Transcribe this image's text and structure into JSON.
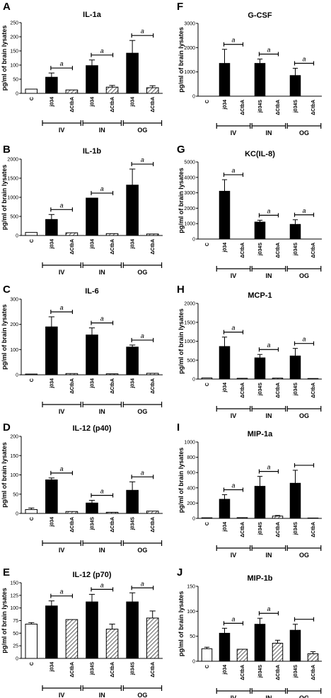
{
  "figure": {
    "ylabel": "pg/ml of brain lysates"
  },
  "chart_data": [
    {
      "letter": "A",
      "title": "IL-1a",
      "type": "bar",
      "ylabel": "pg/ml of brain lysates",
      "ylim": [
        0,
        250
      ],
      "yticks": [
        0,
        50,
        100,
        150,
        200,
        250
      ],
      "categories": [
        "C",
        "j034",
        "ΔCtbA",
        "j034",
        "ΔCtbA",
        "j034",
        "ΔCtbA"
      ],
      "values": [
        15,
        57,
        12,
        98,
        22,
        142,
        20
      ],
      "errors": [
        0,
        15,
        0,
        20,
        6,
        45,
        7
      ],
      "groups": [
        "IV",
        "IN",
        "OG"
      ],
      "significance": [
        "a",
        "a",
        "a"
      ]
    },
    {
      "letter": "B",
      "title": "IL-1b",
      "type": "bar",
      "ylabel": "pg/ml of brain lysates",
      "ylim": [
        0,
        2000
      ],
      "yticks": [
        0,
        500,
        1000,
        1500,
        2000
      ],
      "categories": [
        "C",
        "j034",
        "ΔCtbA",
        "j034",
        "ΔCtbA",
        "j034",
        "ΔCtbA"
      ],
      "values": [
        80,
        420,
        70,
        980,
        50,
        1320,
        40
      ],
      "errors": [
        0,
        130,
        0,
        0,
        0,
        420,
        0
      ],
      "groups": [
        "IV",
        "IN",
        "OG"
      ],
      "significance": [
        "a",
        "a",
        "a"
      ]
    },
    {
      "letter": "C",
      "title": "IL-6",
      "type": "bar",
      "ylabel": "pg/ml of brain lysates",
      "ylim": [
        0,
        300
      ],
      "yticks": [
        0,
        100,
        200,
        300
      ],
      "categories": [
        "C",
        "j034",
        "ΔCtbA",
        "j034",
        "ΔCtbA",
        "j034",
        "ΔCtbA"
      ],
      "values": [
        3,
        190,
        5,
        158,
        4,
        110,
        6
      ],
      "errors": [
        0,
        40,
        0,
        28,
        0,
        8,
        0
      ],
      "groups": [
        "IV",
        "IN",
        "OG"
      ],
      "significance": [
        "a",
        "a",
        "a"
      ]
    },
    {
      "letter": "D",
      "title": "IL-12 (p40)",
      "type": "bar",
      "ylabel": "pg/ml of brain lysates",
      "ylim": [
        0,
        200
      ],
      "yticks": [
        0,
        50,
        100,
        150,
        200
      ],
      "categories": [
        "C",
        "j034",
        "ΔCtbA",
        "j034S",
        "ΔCtbA",
        "j034S",
        "ΔCtbA"
      ],
      "values": [
        10,
        87,
        5,
        27,
        3,
        60,
        6
      ],
      "errors": [
        4,
        5,
        0,
        7,
        0,
        22,
        0
      ],
      "groups": [
        "IV",
        "IN",
        "OG"
      ],
      "significance": [
        "a",
        "a",
        "a"
      ]
    },
    {
      "letter": "E",
      "title": "IL-12 (p70)",
      "type": "bar",
      "ylabel": "pg/ml of brain lysates",
      "ylim": [
        0,
        150
      ],
      "yticks": [
        0,
        25,
        50,
        75,
        100,
        125,
        150
      ],
      "categories": [
        "C",
        "j034",
        "ΔCtbA",
        "j034S",
        "ΔCtbA",
        "j034S",
        "ΔCtbA"
      ],
      "values": [
        68,
        104,
        77,
        112,
        58,
        112,
        80
      ],
      "errors": [
        3,
        10,
        0,
        15,
        10,
        18,
        14
      ],
      "groups": [
        "IV",
        "IN",
        "OG"
      ],
      "significance": [
        "a",
        "a",
        "a"
      ]
    },
    {
      "letter": "F",
      "title": "G-CSF",
      "type": "bar",
      "ylabel": "pg/ml of brain lysates",
      "ylim": [
        0,
        3000
      ],
      "yticks": [
        0,
        1000,
        2000,
        3000
      ],
      "categories": [
        "C",
        "j034",
        "ΔCtbA",
        "j034S",
        "ΔCtbA",
        "j034S",
        "ΔCtbA"
      ],
      "values": [
        0,
        1350,
        0,
        1350,
        0,
        850,
        0
      ],
      "errors": [
        0,
        580,
        0,
        180,
        0,
        300,
        0
      ],
      "groups": [
        "IV",
        "IN",
        "OG"
      ],
      "significance": [
        "a",
        "a",
        "a"
      ]
    },
    {
      "letter": "G",
      "title": "KC(IL-8)",
      "type": "bar",
      "ylabel": "pg/ml of brain lysates",
      "ylim": [
        0,
        5000
      ],
      "yticks": [
        0,
        1000,
        2000,
        3000,
        4000,
        5000
      ],
      "categories": [
        "C",
        "j034",
        "ΔCtbA",
        "j034S",
        "ΔCtbA",
        "j034S",
        "ΔCtbA"
      ],
      "values": [
        0,
        3100,
        0,
        1100,
        0,
        950,
        0
      ],
      "errors": [
        0,
        750,
        0,
        120,
        0,
        300,
        0
      ],
      "groups": [
        "IV",
        "IN",
        "OG"
      ],
      "significance": [
        "a",
        "a",
        "a"
      ]
    },
    {
      "letter": "H",
      "title": "MCP-1",
      "type": "bar",
      "ylabel": "pg/ml of brain lysates",
      "ylim": [
        0,
        2000
      ],
      "yticks": [
        0,
        500,
        1000,
        1500,
        2000
      ],
      "categories": [
        "C",
        "j034",
        "ΔCtbA",
        "j034S",
        "ΔCtbA",
        "j034S",
        "ΔCtbA"
      ],
      "values": [
        30,
        860,
        20,
        560,
        25,
        610,
        15
      ],
      "errors": [
        0,
        250,
        0,
        90,
        0,
        200,
        0
      ],
      "groups": [
        "IV",
        "IN",
        "OG"
      ],
      "significance": [
        "a",
        "a",
        "a"
      ]
    },
    {
      "letter": "I",
      "title": "MIP-1a",
      "type": "bar",
      "ylabel": "pg/ml of brain lysates",
      "ylim": [
        0,
        1000
      ],
      "yticks": [
        0,
        200,
        400,
        600,
        800,
        1000
      ],
      "categories": [
        "C",
        "j034",
        "ΔCtbA",
        "j034S",
        "ΔCtbA",
        "j034S",
        "ΔCtbA"
      ],
      "values": [
        8,
        250,
        10,
        420,
        30,
        460,
        5
      ],
      "errors": [
        0,
        60,
        0,
        130,
        8,
        170,
        0
      ],
      "groups": [
        "IV",
        "IN",
        "OG"
      ],
      "significance": [
        "a",
        "a",
        ""
      ]
    },
    {
      "letter": "J",
      "title": "MIP-1b",
      "type": "bar",
      "ylabel": "pg/ml of brain lysates",
      "ylim": [
        0,
        150
      ],
      "yticks": [
        0,
        50,
        100,
        150
      ],
      "categories": [
        "C",
        "j034",
        "ΔCtbA",
        "j034S",
        "ΔCtbA",
        "j034S",
        "ΔCtbA"
      ],
      "values": [
        25,
        56,
        24,
        74,
        36,
        62,
        15
      ],
      "errors": [
        3,
        10,
        0,
        12,
        6,
        12,
        4
      ],
      "groups": [
        "IV",
        "IN",
        "OG"
      ],
      "significance": [
        "a",
        "a",
        ""
      ]
    }
  ]
}
